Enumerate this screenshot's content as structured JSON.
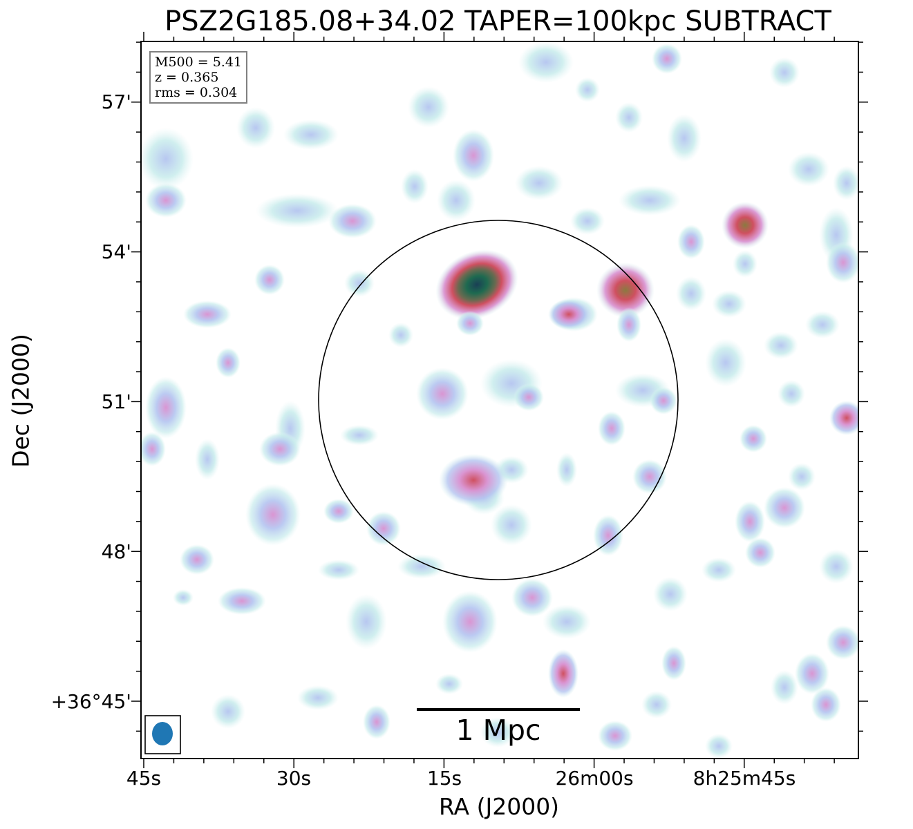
{
  "title": "PSZ2G185.08+34.02 TAPER=100kpc SUBTRACT",
  "axes": {
    "xlabel": "RA (J2000)",
    "ylabel": "Dec (J2000)",
    "xticks": [
      "45s",
      "30s",
      "15s",
      "26m00s",
      "8h25m45s"
    ],
    "yticks": [
      "57'",
      "54'",
      "51'",
      "48'",
      "+36°45'"
    ]
  },
  "info": {
    "m500": "M500 = 5.41",
    "z": "z = 0.365",
    "rms": "rms = 0.304"
  },
  "scalebar": {
    "label": "1 Mpc"
  },
  "colors": {
    "beam": "#1f77b4",
    "low": "#c8ecec",
    "mid": "#b4c4f0",
    "high": "#d890d0",
    "peak": "#cf5060",
    "core": "#1e5a50"
  }
}
